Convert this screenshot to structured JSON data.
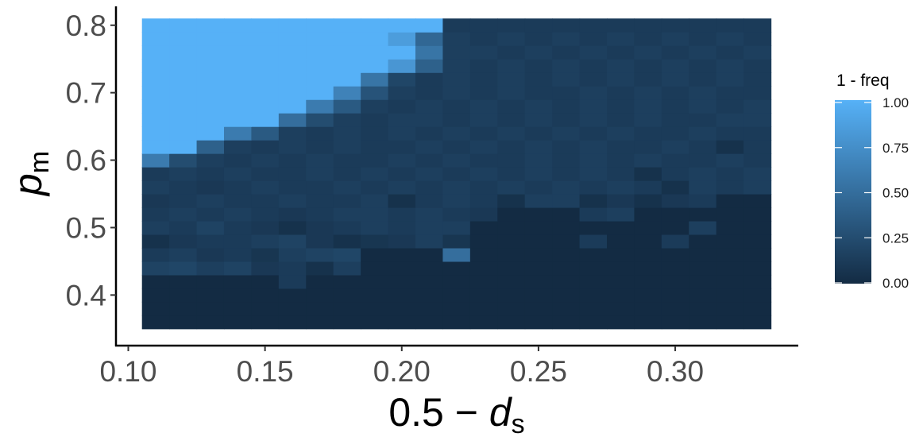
{
  "chart_data": {
    "type": "heatmap",
    "x_title": {
      "main": "0.5 − ",
      "var": "d",
      "sub": "s"
    },
    "y_title": {
      "var": "p",
      "sub": "m"
    },
    "x_ticks": [
      "0.10",
      "0.15",
      "0.20",
      "0.25",
      "0.30"
    ],
    "x_tick_values": [
      0.1,
      0.15,
      0.2,
      0.25,
      0.3
    ],
    "y_ticks": [
      "0.4",
      "0.5",
      "0.6",
      "0.7",
      "0.8"
    ],
    "y_tick_values": [
      0.4,
      0.5,
      0.6,
      0.7,
      0.8
    ],
    "x_range": [
      0.105,
      0.335
    ],
    "y_range": [
      0.35,
      0.81
    ],
    "xlim": [
      0.0955,
      0.345
    ],
    "ylim": [
      0.325,
      0.828
    ],
    "x": [
      0.11,
      0.12,
      0.13,
      0.14,
      0.15,
      0.16,
      0.17,
      0.18,
      0.19,
      0.2,
      0.21,
      0.22,
      0.23,
      0.24,
      0.25,
      0.26,
      0.27,
      0.28,
      0.29,
      0.3,
      0.31,
      0.32,
      0.33
    ],
    "y": [
      0.36,
      0.38,
      0.4,
      0.42,
      0.44,
      0.46,
      0.48,
      0.5,
      0.52,
      0.54,
      0.56,
      0.58,
      0.6,
      0.62,
      0.64,
      0.66,
      0.68,
      0.7,
      0.72,
      0.74,
      0.76,
      0.78,
      0.8
    ],
    "z": [
      [
        0,
        0,
        0,
        0,
        0,
        0,
        0,
        0,
        0,
        0,
        0,
        0,
        0,
        0,
        0,
        0,
        0,
        0,
        0,
        0,
        0,
        0,
        0
      ],
      [
        0,
        0,
        0,
        0,
        0,
        0,
        0,
        0,
        0,
        0,
        0,
        0,
        0,
        0,
        0,
        0,
        0,
        0,
        0,
        0,
        0,
        0,
        0
      ],
      [
        0,
        0,
        0,
        0,
        0,
        0,
        0,
        0,
        0,
        0,
        0,
        0,
        0,
        0,
        0,
        0,
        0,
        0,
        0,
        0,
        0,
        0,
        0
      ],
      [
        0,
        0,
        0,
        0,
        0,
        0.12,
        0,
        0,
        0,
        0,
        0,
        0,
        0,
        0,
        0,
        0,
        0,
        0,
        0,
        0,
        0,
        0,
        0
      ],
      [
        0.18,
        0.2,
        0.15,
        0.18,
        0.1,
        0.12,
        0.05,
        0.15,
        0,
        0,
        0,
        0,
        0,
        0,
        0,
        0,
        0,
        0,
        0,
        0,
        0,
        0,
        0
      ],
      [
        0.12,
        0.15,
        0.1,
        0.12,
        0.08,
        0.15,
        0.18,
        0.2,
        0,
        0,
        0,
        0.5,
        0,
        0,
        0,
        0,
        0,
        0,
        0,
        0,
        0,
        0,
        0
      ],
      [
        0.05,
        0.1,
        0.12,
        0.12,
        0.15,
        0.18,
        0.1,
        0.05,
        0.08,
        0.1,
        0.15,
        0.08,
        0,
        0,
        0,
        0,
        0.12,
        0,
        0,
        0.12,
        0,
        0,
        0
      ],
      [
        0.15,
        0.12,
        0.18,
        0.12,
        0.1,
        0.05,
        0.1,
        0.12,
        0.15,
        0.12,
        0.15,
        0.15,
        0,
        0,
        0,
        0,
        0,
        0,
        0,
        0,
        0.15,
        0,
        0
      ],
      [
        0.12,
        0.15,
        0.12,
        0.15,
        0.12,
        0.1,
        0.12,
        0.15,
        0.15,
        0.12,
        0.15,
        0.12,
        0.1,
        0,
        0,
        0,
        0.12,
        0.15,
        0,
        0,
        0,
        0,
        0
      ],
      [
        0.1,
        0.12,
        0.15,
        0.12,
        0.12,
        0.15,
        0.12,
        0.12,
        0.15,
        0.05,
        0.12,
        0.15,
        0.12,
        0.05,
        0.15,
        0.15,
        0.05,
        0.1,
        0.05,
        0.1,
        0.12,
        0,
        0
      ],
      [
        0.15,
        0.12,
        0.1,
        0.12,
        0.15,
        0.12,
        0.12,
        0.15,
        0.12,
        0.15,
        0.12,
        0.15,
        0.12,
        0.15,
        0.12,
        0.15,
        0.12,
        0.15,
        0.12,
        0.05,
        0.15,
        0.12,
        0.15
      ],
      [
        0.12,
        0.15,
        0.12,
        0.15,
        0.12,
        0.12,
        0.15,
        0.12,
        0.15,
        0.12,
        0.15,
        0.12,
        0.15,
        0.12,
        0.15,
        0.12,
        0.15,
        0.12,
        0.05,
        0.12,
        0.15,
        0.12,
        0.15
      ],
      [
        0.6,
        0.25,
        0.15,
        0.12,
        0.15,
        0.12,
        0.15,
        0.12,
        0.12,
        0.15,
        0.12,
        0.15,
        0.12,
        0.12,
        0.15,
        0.12,
        0.15,
        0.12,
        0.15,
        0.12,
        0.12,
        0.15,
        0.12
      ],
      [
        1,
        1,
        0.4,
        0.15,
        0.12,
        0.15,
        0.12,
        0.15,
        0.12,
        0.12,
        0.15,
        0.12,
        0.15,
        0.12,
        0.15,
        0.12,
        0.15,
        0.12,
        0.12,
        0.15,
        0.12,
        0.05,
        0.12
      ],
      [
        1,
        1,
        1,
        0.6,
        0.35,
        0.15,
        0.12,
        0.15,
        0.12,
        0.15,
        0.12,
        0.15,
        0.12,
        0.15,
        0.12,
        0.15,
        0.12,
        0.15,
        0.12,
        0.12,
        0.15,
        0.12,
        0.12
      ],
      [
        1,
        1,
        1,
        1,
        1,
        0.5,
        0.25,
        0.15,
        0.12,
        0.15,
        0.15,
        0.12,
        0.15,
        0.12,
        0.15,
        0.12,
        0.15,
        0.12,
        0.15,
        0.12,
        0.12,
        0.15,
        0.15
      ],
      [
        1,
        1,
        1,
        1,
        1,
        1,
        0.6,
        0.35,
        0.15,
        0.12,
        0.15,
        0.12,
        0.15,
        0.12,
        0.15,
        0.12,
        0.15,
        0.12,
        0.15,
        0.12,
        0.15,
        0.12,
        0.15
      ],
      [
        1,
        1,
        1,
        1,
        1,
        1,
        1,
        0.65,
        0.3,
        0.15,
        0.12,
        0.15,
        0.12,
        0.15,
        0.12,
        0.12,
        0.15,
        0.12,
        0.15,
        0.12,
        0.15,
        0.12,
        0.12
      ],
      [
        1,
        1,
        1,
        1,
        1,
        1,
        1,
        1,
        0.55,
        0.2,
        0.12,
        0.15,
        0.12,
        0.15,
        0.12,
        0.15,
        0.12,
        0.15,
        0.12,
        0.15,
        0.12,
        0.15,
        0.12
      ],
      [
        1,
        1,
        1,
        1,
        1,
        1,
        1,
        1,
        1,
        0.8,
        0.4,
        0.15,
        0.12,
        0.15,
        0.12,
        0.15,
        0.12,
        0.15,
        0.12,
        0.15,
        0.12,
        0.15,
        0.12
      ],
      [
        1,
        1,
        1,
        1,
        1,
        1,
        1,
        1,
        1,
        1,
        0.55,
        0.15,
        0.15,
        0.12,
        0.15,
        0.12,
        0.15,
        0.12,
        0.15,
        0.12,
        0.15,
        0.12,
        0.15
      ],
      [
        1,
        1,
        1,
        1,
        1,
        1,
        1,
        1,
        1,
        0.85,
        0.45,
        0.15,
        0.12,
        0.15,
        0.12,
        0.15,
        0.12,
        0.15,
        0.12,
        0.15,
        0.12,
        0.15,
        0.12
      ],
      [
        1,
        1,
        1,
        1,
        1,
        1,
        1,
        1,
        1,
        1,
        1,
        0.12,
        0.12,
        0.12,
        0.12,
        0.12,
        0.12,
        0.12,
        0.12,
        0.12,
        0.12,
        0.12,
        0.12
      ]
    ],
    "legend": {
      "title": "1 - freq",
      "ticks": [
        "1.00",
        "0.75",
        "0.50",
        "0.25",
        "0.00"
      ],
      "tick_values": [
        1.0,
        0.75,
        0.5,
        0.25,
        0.0
      ],
      "placement": "right"
    },
    "colors": {
      "low": "#132b43",
      "high": "#56b1f7"
    },
    "grid": false
  }
}
